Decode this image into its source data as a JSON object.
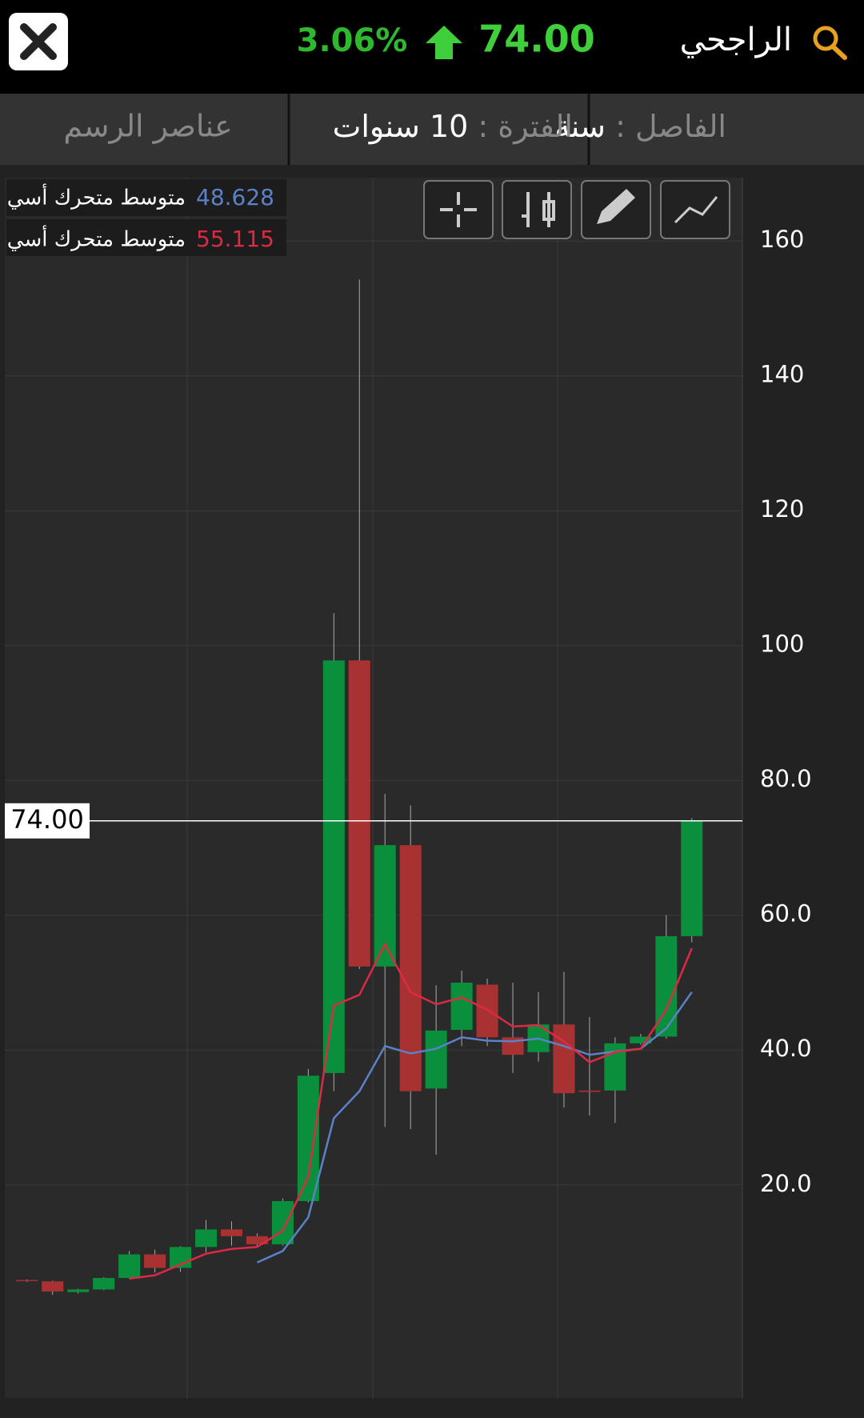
{
  "header": {
    "title": "الراجحي",
    "price": "74.00",
    "change": "3.06%"
  },
  "tabs": [
    {
      "label": "الفاصل :",
      "value": "سنة"
    },
    {
      "label": "الفترة :",
      "value": "10 سنوات"
    },
    {
      "label": "عناصر الرسم"
    }
  ],
  "chart_data": {
    "type": "candlestick",
    "categories": [
      null,
      null,
      null,
      null,
      null,
      null,
      null,
      null,
      null,
      null,
      null,
      null,
      null,
      null,
      null,
      null,
      null,
      null,
      null,
      null,
      null,
      null,
      null,
      null,
      null,
      null,
      null
    ],
    "open": [
      5.9,
      5.7,
      4.1,
      4.5,
      6.2,
      9.7,
      7.7,
      10.8,
      13.4,
      12.4,
      11.2,
      17.6,
      36.6,
      97.8,
      52.4,
      70.4,
      34.3,
      43,
      49.7,
      41.9,
      39.7,
      43.8,
      34,
      34,
      41,
      42,
      56.9
    ],
    "high": [
      6.0,
      5.8,
      4.6,
      6.3,
      10.2,
      10.4,
      10.9,
      14.8,
      14.6,
      12.8,
      18,
      37.2,
      104.8,
      154.3,
      78,
      76.3,
      49.6,
      51.8,
      50.6,
      50,
      48.6,
      51.6,
      44.9,
      41.9,
      42.4,
      60,
      74.4
    ],
    "low": [
      5.6,
      3.7,
      3.9,
      4.4,
      6.1,
      7.0,
      7.1,
      10,
      11,
      10.7,
      11,
      17.4,
      33.9,
      52,
      28.6,
      28.3,
      24.5,
      40.6,
      40.6,
      36.6,
      38.3,
      31.5,
      30.3,
      29.2,
      40.8,
      41.7,
      56
    ],
    "close": [
      5.8,
      4.2,
      4.5,
      6.2,
      9.7,
      7.7,
      10.8,
      13.4,
      12.4,
      11.2,
      17.6,
      36.2,
      97.8,
      52.4,
      70.4,
      33.9,
      42.9,
      50,
      41.9,
      39.3,
      43.8,
      33.6,
      33.8,
      41,
      42,
      56.9,
      74
    ],
    "up_color": "#0a8f3c",
    "down_color": "#a83232",
    "series": [
      {
        "name": "متوسط متحرك أسي",
        "color": "#5b82c8",
        "last_value": 48.628,
        "values": [
          null,
          null,
          null,
          null,
          null,
          null,
          null,
          null,
          null,
          8.5,
          10.2,
          15.2,
          29.9,
          33.9,
          40.6,
          39.5,
          40.2,
          41.9,
          41.4,
          41.3,
          41.7,
          40.6,
          39.3,
          39.8,
          40.2,
          43.2,
          48.6
        ]
      },
      {
        "name": "متوسط متحرك أسي",
        "color": "#dc2a45",
        "last_value": 55.115,
        "values": [
          null,
          null,
          null,
          null,
          6.1,
          6.6,
          8.2,
          9.8,
          10.5,
          10.8,
          13.2,
          21.2,
          46.6,
          48.2,
          55.7,
          48.6,
          46.8,
          47.8,
          46,
          43.5,
          43.7,
          41.3,
          38.2,
          39.7,
          40.2,
          46,
          55.1
        ]
      }
    ],
    "last_price": {
      "value": 74,
      "label": "74.00"
    },
    "ylim": [
      -11.6,
      169.4
    ],
    "yticks": [
      {
        "value": 20,
        "label": "20.0"
      },
      {
        "value": 40,
        "label": "40.0"
      },
      {
        "value": 60,
        "label": "60.0"
      },
      {
        "value": 80,
        "label": "80.0"
      },
      100,
      120,
      140,
      160
    ],
    "grid": true
  }
}
